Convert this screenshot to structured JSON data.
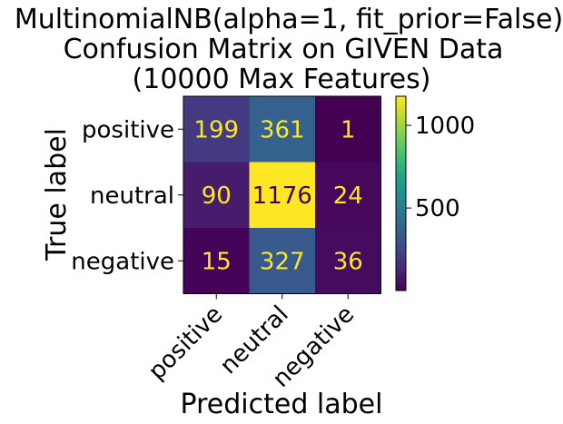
{
  "chart_data": {
    "type": "heatmap",
    "title_lines": [
      "MultinomialNB(alpha=1, fit_prior=False)",
      "Confusion Matrix on GIVEN Data",
      "(10000 Max Features)"
    ],
    "xlabel": "Predicted label",
    "ylabel": "True label",
    "row_labels": [
      "positive",
      "neutral",
      "negative"
    ],
    "col_labels": [
      "positive",
      "neutral",
      "negative"
    ],
    "values": [
      [
        199,
        361,
        1
      ],
      [
        90,
        1176,
        24
      ],
      [
        15,
        327,
        36
      ]
    ],
    "colormap": "viridis",
    "colorbar": {
      "min": 1,
      "max": 1176,
      "ticks": [
        500,
        1000
      ]
    },
    "text_color_dark_cell": "#fde725",
    "text_color_light_cell": "#440154"
  }
}
